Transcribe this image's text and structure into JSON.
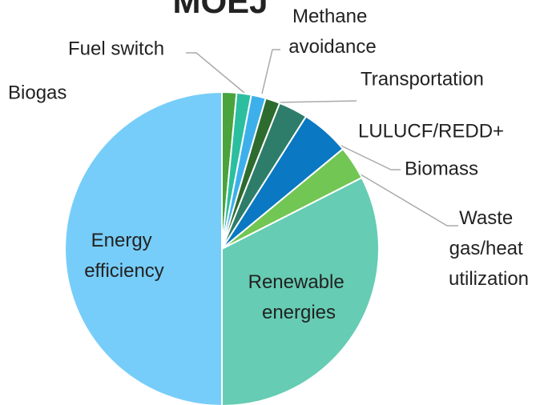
{
  "chart_data": {
    "type": "pie",
    "title": "MOEJ",
    "categories": [
      "Biogas",
      "Fuel switch",
      "Methane avoidance",
      "Transportation",
      "LULUCF/REDD+",
      "Biomass",
      "Waste gas/heat utilization",
      "Renewable energies",
      "Energy efficiency"
    ],
    "values": [
      1.5,
      1.5,
      1.5,
      1.5,
      3,
      5,
      3.5,
      32.5,
      50
    ],
    "colors": [
      "#4aa33c",
      "#2bbfa0",
      "#3db0ec",
      "#2e6b2e",
      "#2e7d6a",
      "#0a78c2",
      "#72c653",
      "#66ccb3",
      "#77cdf9"
    ]
  }
}
